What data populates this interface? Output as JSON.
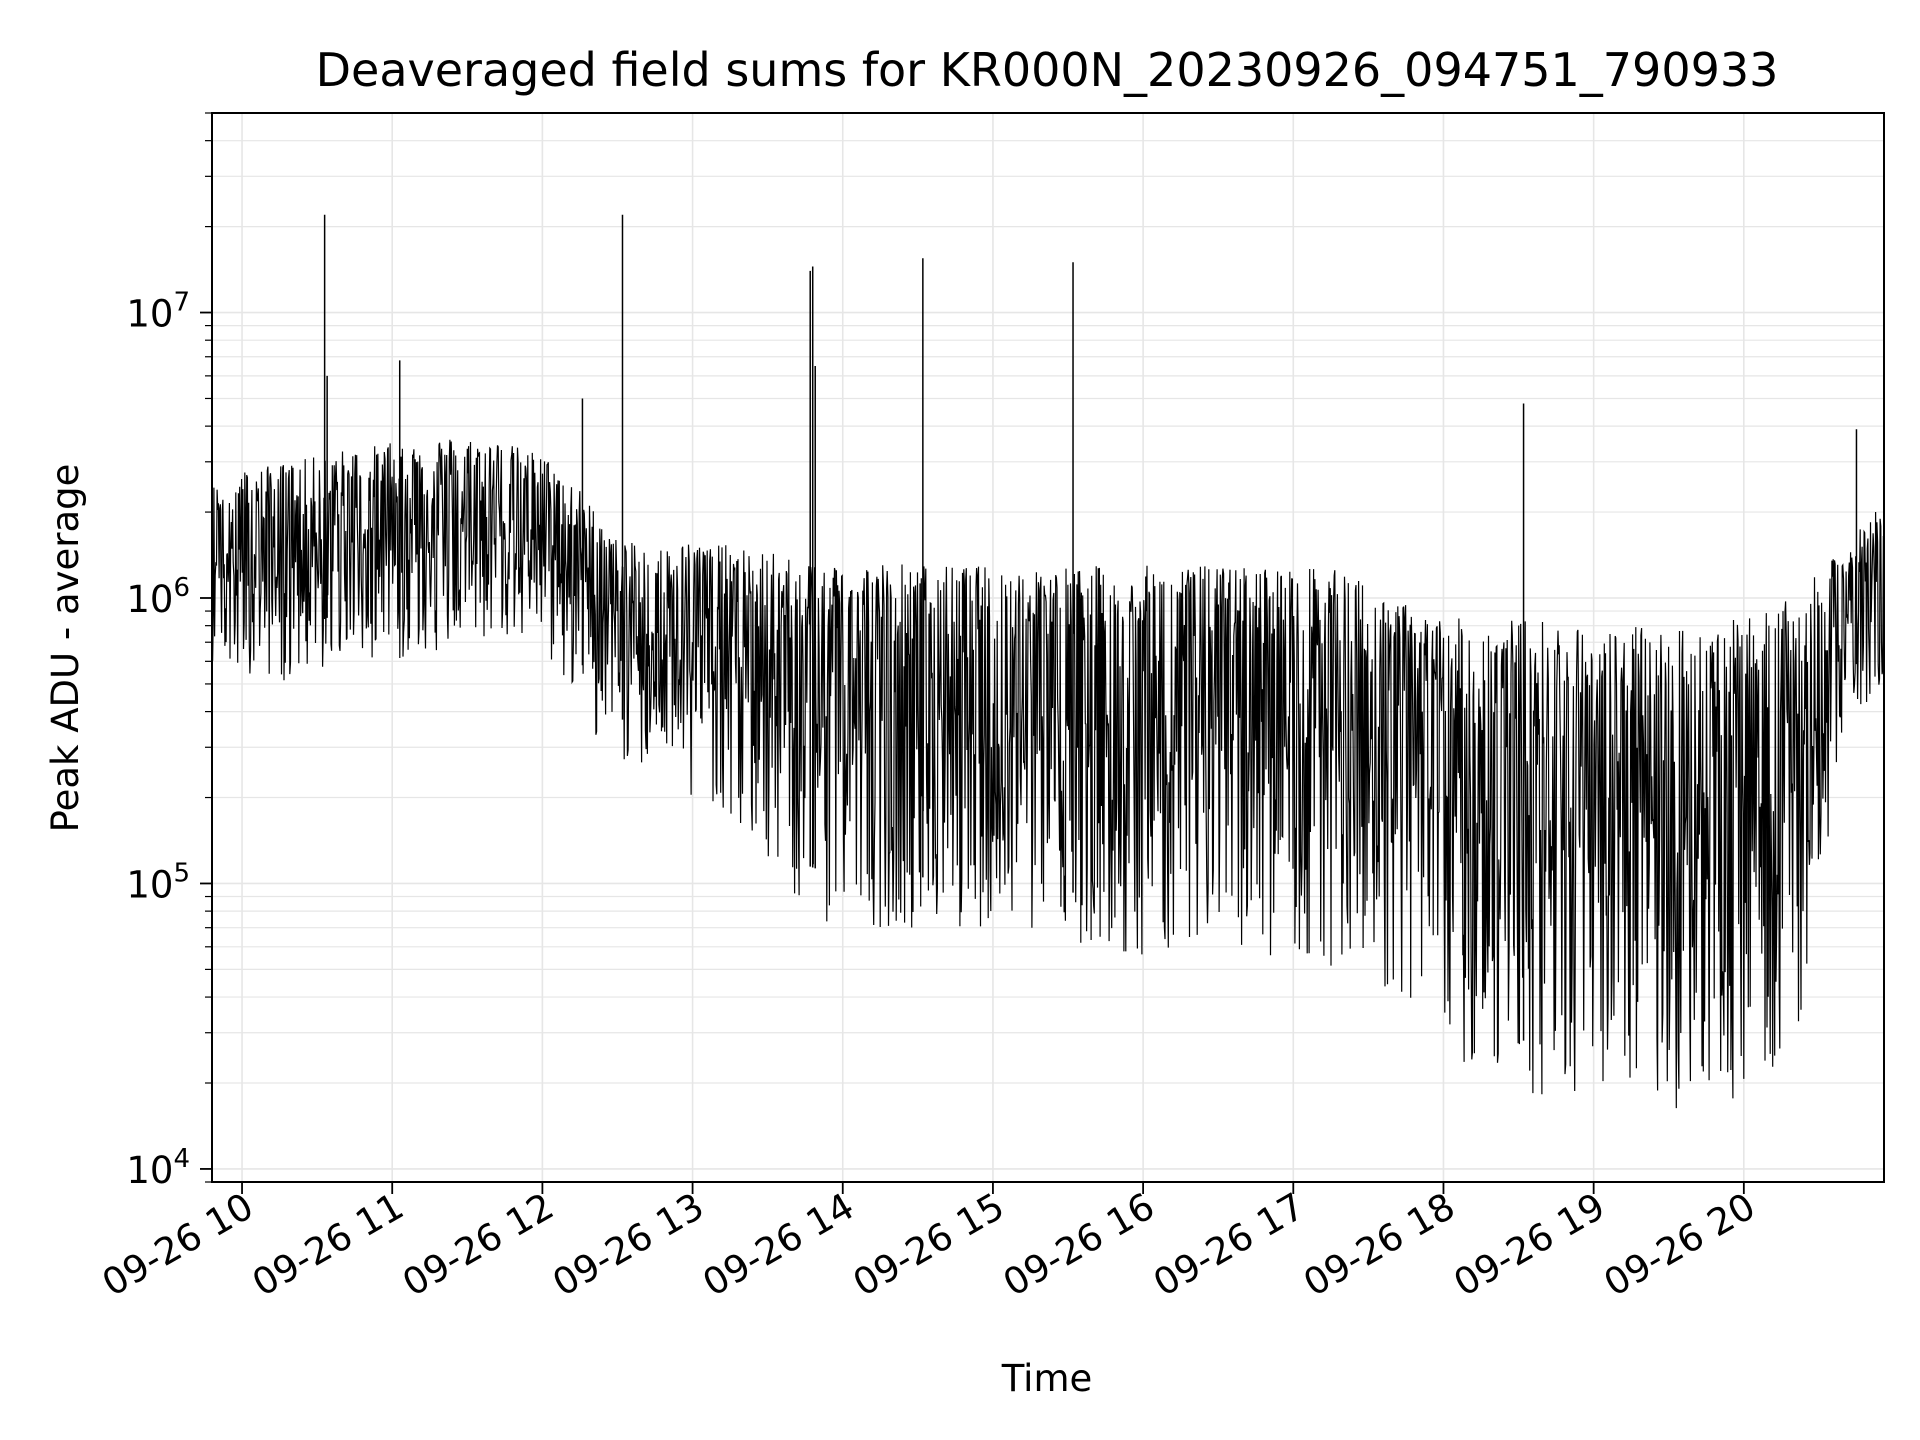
{
  "chart_data": {
    "type": "line",
    "title": "Deaveraged field sums for KR000N_20230926_094751_790933",
    "xlabel": "Time",
    "ylabel": "Peak ADU - average",
    "y_scale": "log",
    "ylim": [
      9000,
      50000000
    ],
    "xlim": [
      "09-26 09:48",
      "09-26 20:56"
    ],
    "grid": true,
    "line_color": "#000000",
    "grid_color": "#e6e6e6",
    "x_ticks": [
      "09-26 10",
      "09-26 11",
      "09-26 12",
      "09-26 13",
      "09-26 14",
      "09-26 15",
      "09-26 16",
      "09-26 17",
      "09-26 18",
      "09-26 19",
      "09-26 20"
    ],
    "y_ticks": [
      {
        "base": "10",
        "exp": "4",
        "value": 10000
      },
      {
        "base": "10",
        "exp": "5",
        "value": 100000
      },
      {
        "base": "10",
        "exp": "6",
        "value": 1000000
      },
      {
        "base": "10",
        "exp": "7",
        "value": 10000000
      }
    ],
    "series": [
      {
        "x": [
          "09-26 09:48",
          "09-26 10:00",
          "09-26 10:20",
          "09-26 10:40",
          "09-26 11:00",
          "09-26 11:20",
          "09-26 11:40",
          "09-26 12:00",
          "09-26 12:15",
          "09-26 12:30",
          "09-26 12:45",
          "09-26 13:00",
          "09-26 13:20",
          "09-26 13:40",
          "09-26 14:00",
          "09-26 14:20",
          "09-26 14:40",
          "09-26 15:00",
          "09-26 15:20",
          "09-26 15:40",
          "09-26 16:00",
          "09-26 16:20",
          "09-26 16:40",
          "09-26 17:00",
          "09-26 17:20",
          "09-26 17:40",
          "09-26 18:00",
          "09-26 18:20",
          "09-26 18:40",
          "09-26 19:00",
          "09-26 19:20",
          "09-26 19:40",
          "09-26 20:00",
          "09-26 20:20",
          "09-26 20:40",
          "09-26 20:56"
        ],
        "high": [
          2500000,
          2800000,
          3000000,
          3300000,
          3500000,
          3700000,
          3600000,
          3200000,
          2400000,
          1600000,
          1500000,
          1600000,
          1500000,
          1400000,
          1350000,
          1350000,
          1300000,
          1300000,
          1300000,
          1300000,
          1300000,
          1300000,
          1300000,
          1300000,
          1250000,
          1000000,
          850000,
          850000,
          850000,
          800000,
          800000,
          800000,
          850000,
          1000000,
          1500000,
          2200000
        ],
        "low": [
          600000,
          550000,
          500000,
          600000,
          600000,
          650000,
          700000,
          650000,
          400000,
          250000,
          250000,
          200000,
          150000,
          80000,
          70000,
          70000,
          70000,
          70000,
          65000,
          60000,
          55000,
          55000,
          55000,
          55000,
          50000,
          40000,
          25000,
          20000,
          18000,
          17000,
          16000,
          16000,
          18000,
          22000,
          350000,
          500000
        ]
      }
    ],
    "spikes": [
      {
        "x": "09-26 10:33",
        "y": 22000000
      },
      {
        "x": "09-26 10:34",
        "y": 6000000
      },
      {
        "x": "09-26 11:03",
        "y": 6800000
      },
      {
        "x": "09-26 12:16",
        "y": 5000000
      },
      {
        "x": "09-26 12:32",
        "y": 22000000
      },
      {
        "x": "09-26 13:47",
        "y": 14000000
      },
      {
        "x": "09-26 13:48",
        "y": 14500000
      },
      {
        "x": "09-26 13:49",
        "y": 6500000
      },
      {
        "x": "09-26 14:32",
        "y": 15500000
      },
      {
        "x": "09-26 15:32",
        "y": 15000000
      },
      {
        "x": "09-26 18:32",
        "y": 4800000
      },
      {
        "x": "09-26 20:45",
        "y": 3900000
      }
    ]
  }
}
